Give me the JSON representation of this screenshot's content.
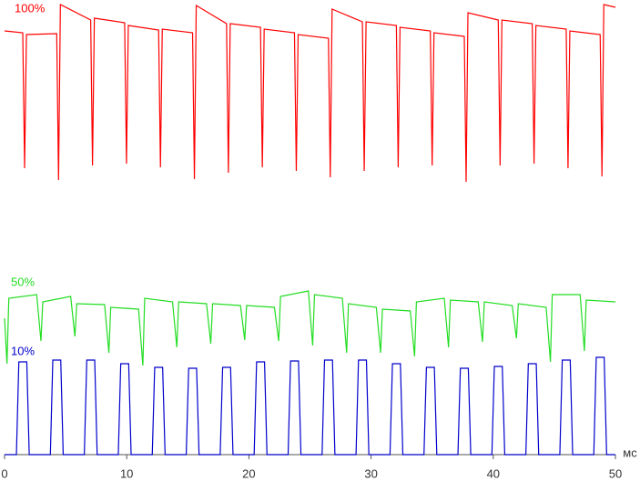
{
  "chart_data": {
    "type": "line",
    "x_label": "мс",
    "xlim": [
      0,
      50
    ],
    "xticks": [
      0,
      10,
      20,
      30,
      40,
      50
    ],
    "ylim": [
      0,
      500
    ],
    "series": [
      {
        "name": "100%",
        "color": "#ff0000",
        "x": [
          0,
          1.49,
          1.64,
          1.79,
          4.27,
          4.42,
          4.57,
          7.05,
          7.2,
          7.35,
          9.83,
          9.98,
          10.13,
          12.61,
          12.76,
          12.91,
          15.39,
          15.54,
          15.69,
          18.17,
          18.32,
          18.47,
          20.95,
          21.1,
          21.25,
          23.73,
          23.88,
          24.03,
          26.51,
          26.66,
          26.81,
          29.29,
          29.44,
          29.59,
          32.07,
          32.22,
          32.37,
          34.85,
          35.0,
          35.15,
          37.63,
          37.78,
          37.93,
          40.41,
          40.56,
          40.71,
          43.19,
          43.34,
          43.49,
          45.97,
          46.12,
          46.27,
          48.75,
          48.9,
          49.05,
          50
        ],
        "values": [
          466,
          464,
          315,
          462,
          463,
          302,
          495,
          478,
          318,
          480,
          475,
          320,
          472,
          467,
          316,
          468,
          464,
          303,
          494,
          474,
          310,
          474,
          470,
          316,
          468,
          464,
          312,
          462,
          458,
          305,
          490,
          476,
          312,
          476,
          472,
          316,
          470,
          466,
          318,
          464,
          460,
          300,
          486,
          478,
          318,
          478,
          474,
          320,
          472,
          468,
          315,
          466,
          462,
          306,
          495,
          492
        ]
      },
      {
        "name": "50%",
        "color": "#22dd22",
        "x": [
          0,
          0.2,
          0.35,
          2.63,
          2.98,
          3.13,
          5.41,
          5.76,
          5.91,
          8.19,
          8.54,
          8.69,
          10.97,
          11.32,
          11.47,
          13.75,
          14.1,
          14.25,
          16.53,
          16.88,
          17.03,
          19.31,
          19.66,
          19.81,
          22.09,
          22.44,
          22.59,
          24.87,
          25.22,
          25.37,
          27.65,
          28.0,
          28.15,
          30.43,
          30.78,
          30.93,
          33.21,
          33.56,
          33.71,
          35.99,
          36.34,
          36.49,
          38.77,
          39.12,
          39.27,
          41.55,
          41.9,
          42.05,
          44.33,
          44.68,
          44.83,
          47.11,
          47.46,
          47.61,
          50
        ],
        "values": [
          150,
          100,
          172,
          176,
          125,
          168,
          174,
          130,
          166,
          165,
          112,
          162,
          160,
          98,
          172,
          168,
          118,
          168,
          166,
          122,
          166,
          164,
          126,
          164,
          162,
          125,
          174,
          180,
          120,
          176,
          172,
          112,
          166,
          162,
          112,
          160,
          158,
          108,
          168,
          172,
          118,
          170,
          168,
          124,
          168,
          164,
          128,
          166,
          162,
          102,
          176,
          176,
          114,
          170,
          168
        ]
      },
      {
        "name": "10%",
        "color": "#0000cc",
        "x": [
          0,
          0.97,
          1.17,
          1.82,
          2.02,
          3.75,
          3.95,
          4.6,
          4.8,
          6.53,
          6.73,
          7.38,
          7.58,
          9.31,
          9.51,
          10.16,
          10.36,
          12.09,
          12.29,
          12.94,
          13.14,
          14.87,
          15.07,
          15.72,
          15.92,
          17.65,
          17.85,
          18.5,
          18.7,
          20.43,
          20.63,
          21.28,
          21.48,
          23.21,
          23.41,
          24.06,
          24.26,
          25.99,
          26.19,
          26.84,
          27.04,
          28.77,
          28.97,
          29.62,
          29.82,
          31.55,
          31.75,
          32.4,
          32.6,
          34.33,
          34.53,
          35.18,
          35.38,
          37.11,
          37.31,
          37.96,
          38.16,
          39.89,
          40.09,
          40.74,
          40.94,
          42.67,
          42.87,
          43.52,
          43.72,
          45.45,
          45.65,
          46.3,
          46.5,
          48.23,
          48.43,
          49.08,
          49.28,
          50
        ],
        "values": [
          0,
          0,
          102,
          102,
          0,
          0,
          104,
          104,
          0,
          0,
          104,
          104,
          0,
          0,
          100,
          100,
          0,
          0,
          96,
          96,
          0,
          0,
          95,
          95,
          0,
          0,
          96,
          96,
          0,
          0,
          102,
          102,
          0,
          0,
          103,
          103,
          0,
          0,
          104,
          104,
          0,
          0,
          104,
          104,
          0,
          0,
          100,
          100,
          0,
          0,
          96,
          96,
          0,
          0,
          95,
          95,
          0,
          0,
          97,
          97,
          0,
          0,
          100,
          100,
          0,
          0,
          104,
          104,
          0,
          0,
          107,
          107,
          0,
          0
        ]
      }
    ]
  }
}
